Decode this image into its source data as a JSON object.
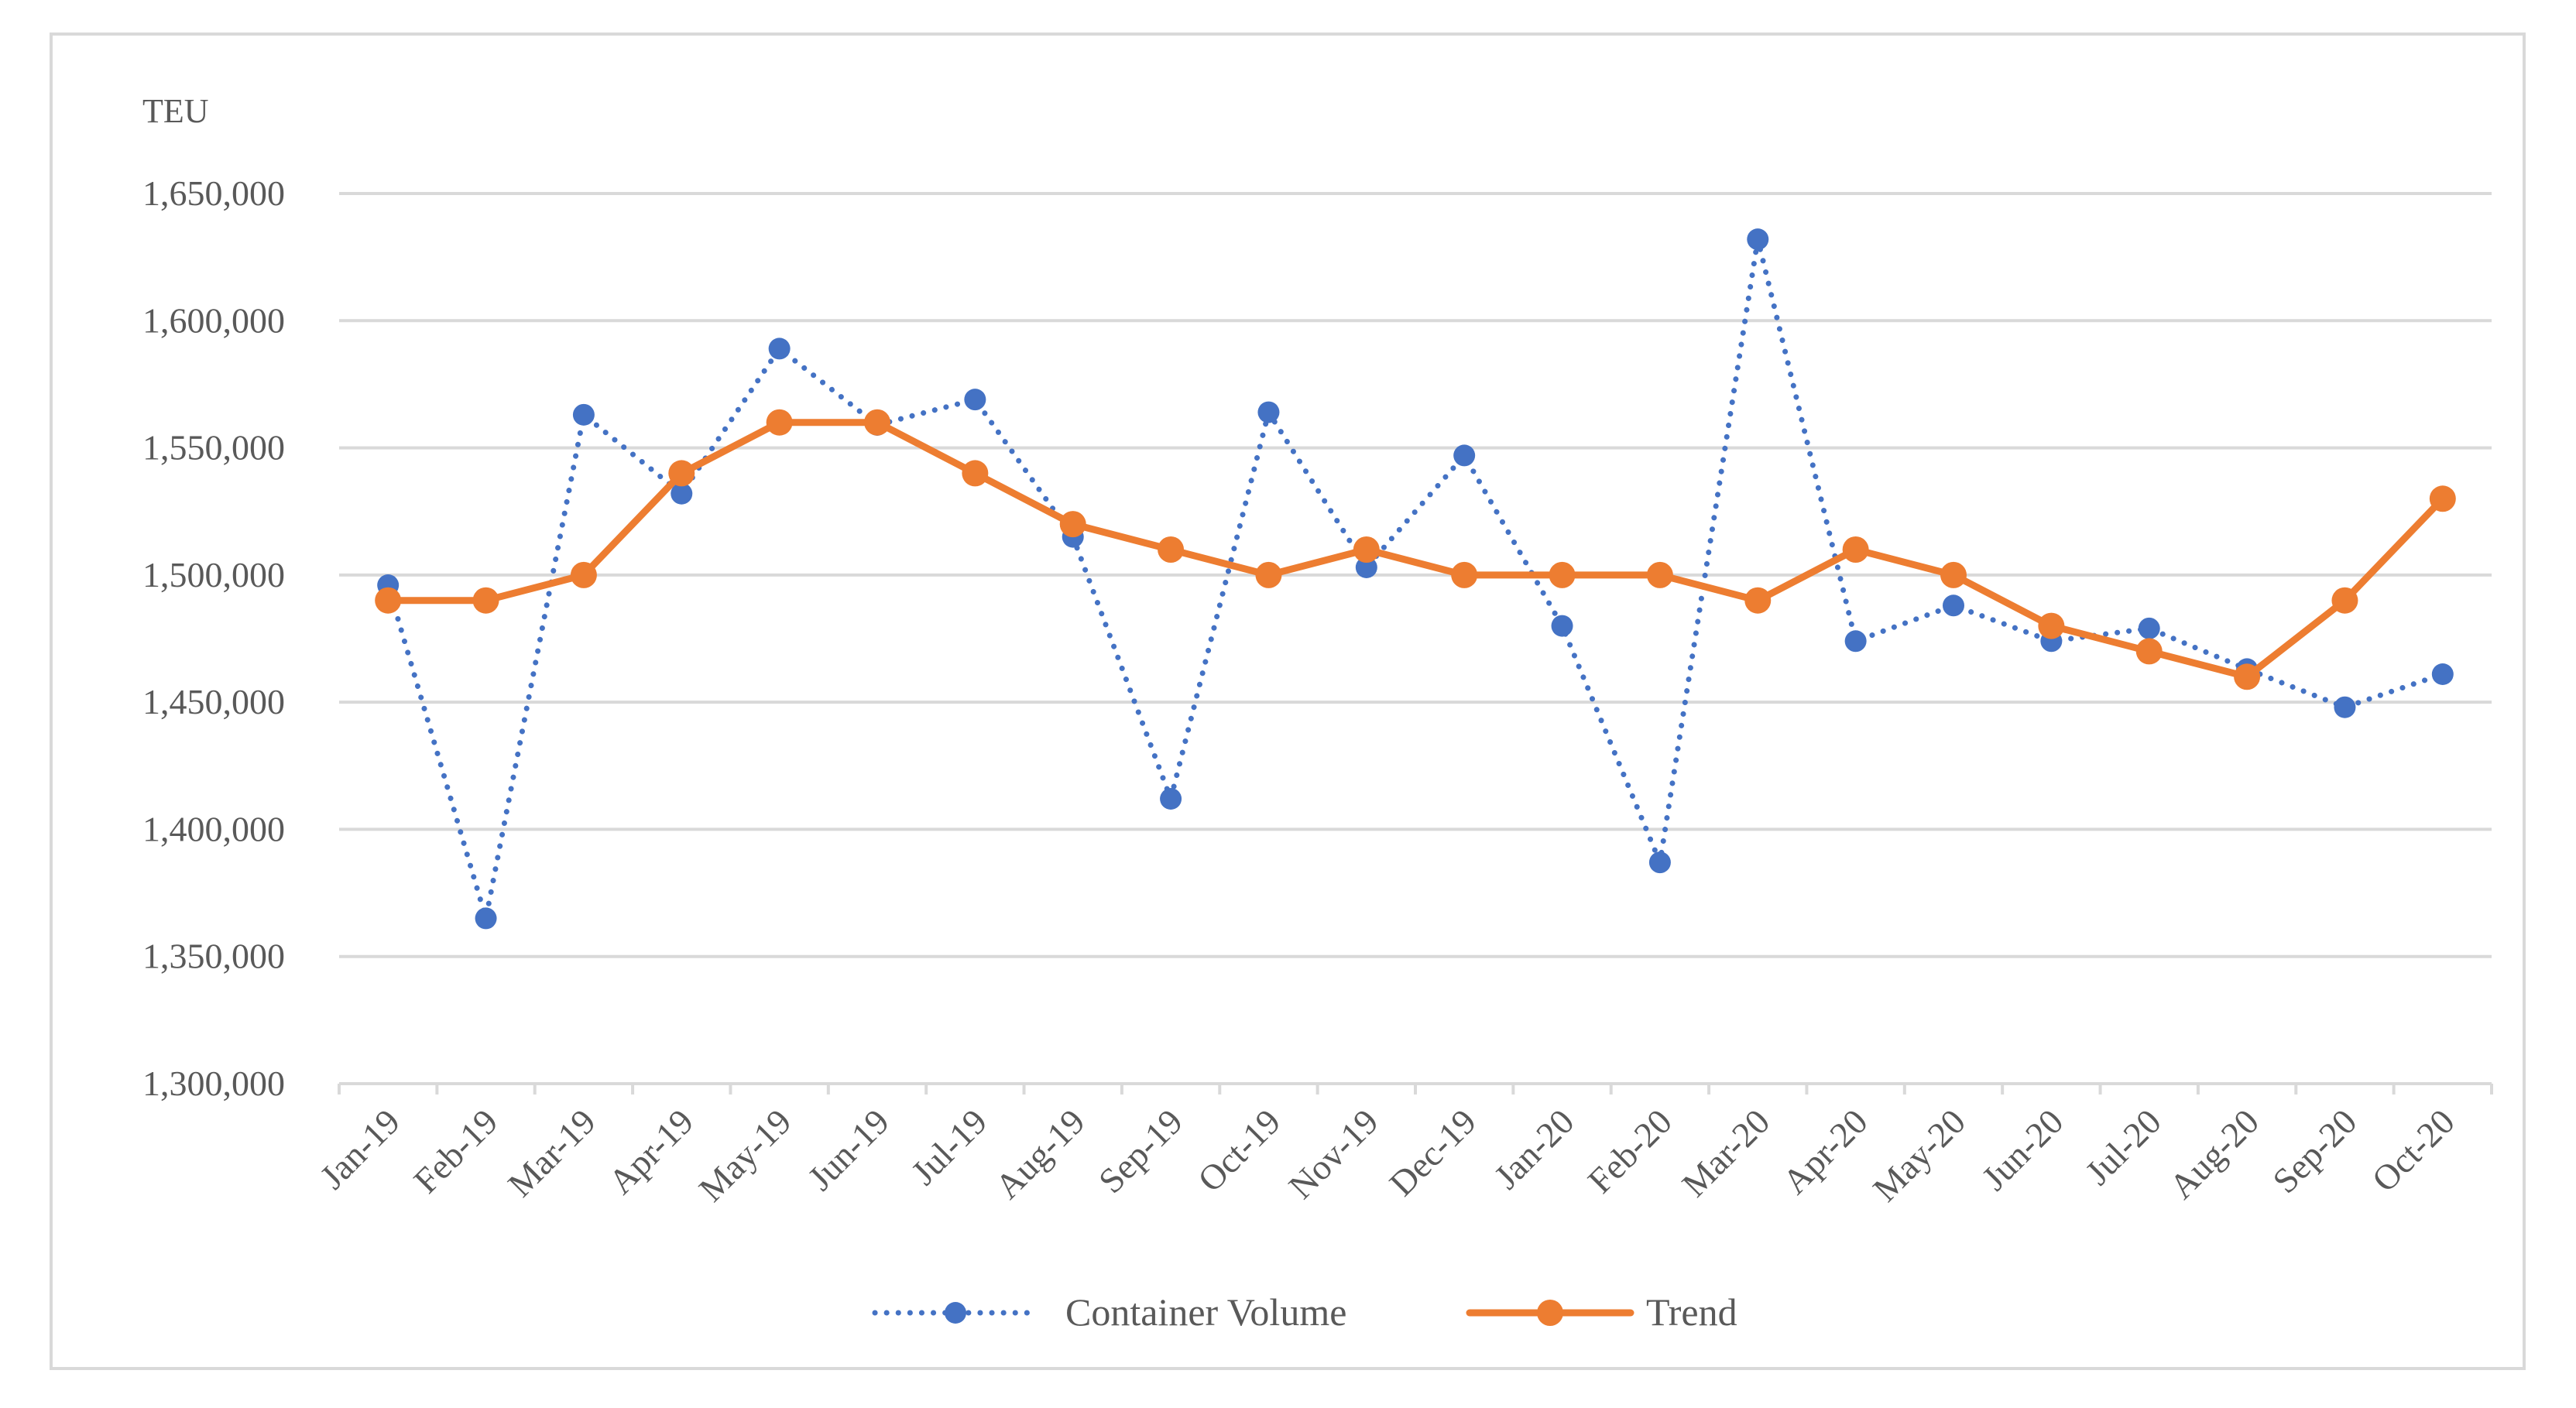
{
  "chart_data": {
    "type": "line",
    "title": "",
    "xlabel": "",
    "ylabel": "TEU",
    "ylim": [
      1300000,
      1650000
    ],
    "ytick_step": 50000,
    "y_ticks": [
      "1,300,000",
      "1,350,000",
      "1,400,000",
      "1,450,000",
      "1,500,000",
      "1,550,000",
      "1,600,000",
      "1,650,000"
    ],
    "grid": true,
    "legend_position": "bottom-center",
    "categories": [
      "Jan-19",
      "Feb-19",
      "Mar-19",
      "Apr-19",
      "May-19",
      "Jun-19",
      "Jul-19",
      "Aug-19",
      "Sep-19",
      "Oct-19",
      "Nov-19",
      "Dec-19",
      "Jan-20",
      "Feb-20",
      "Mar-20",
      "Apr-20",
      "May-20",
      "Jun-20",
      "Jul-20",
      "Aug-20",
      "Sep-20",
      "Oct-20"
    ],
    "series": [
      {
        "name": "Container Volume",
        "style": "dotted",
        "color": "#4472C4",
        "values": [
          1496000,
          1365000,
          1563000,
          1532000,
          1589000,
          1559000,
          1569000,
          1515000,
          1412000,
          1564000,
          1503000,
          1547000,
          1480000,
          1387000,
          1632000,
          1474000,
          1488000,
          1474000,
          1479000,
          1463000,
          1448000,
          1461000
        ]
      },
      {
        "name": "Trend",
        "style": "solid",
        "color": "#ED7D31",
        "values": [
          1490000,
          1490000,
          1500000,
          1540000,
          1560000,
          1560000,
          1540000,
          1520000,
          1510000,
          1500000,
          1510000,
          1500000,
          1500000,
          1500000,
          1490000,
          1510000,
          1500000,
          1480000,
          1470000,
          1460000,
          1490000,
          1530000
        ]
      }
    ]
  },
  "colors": {
    "gridline": "#d9d9d9",
    "axis_text": "#595959",
    "frame_border": "#d9d9d9"
  }
}
